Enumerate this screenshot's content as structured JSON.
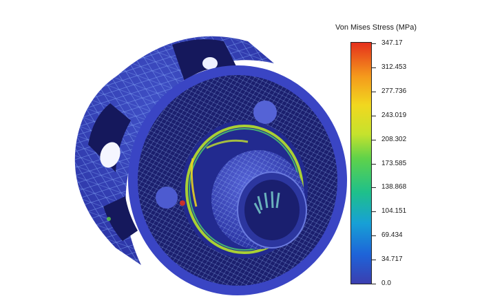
{
  "legend": {
    "title": "Von Mises Stress (MPa)",
    "colormap": [
      "#3b3fb0",
      "#1e63d8",
      "#17a0d6",
      "#1fc08a",
      "#5fd24a",
      "#c5e22d",
      "#f1d81f",
      "#f59a1c",
      "#e5301c"
    ],
    "ticks": [
      "347.17",
      "312.453",
      "277.736",
      "243.019",
      "208.302",
      "173.585",
      "138.868",
      "104.151",
      "69.434",
      "34.717",
      "0.0"
    ]
  }
}
